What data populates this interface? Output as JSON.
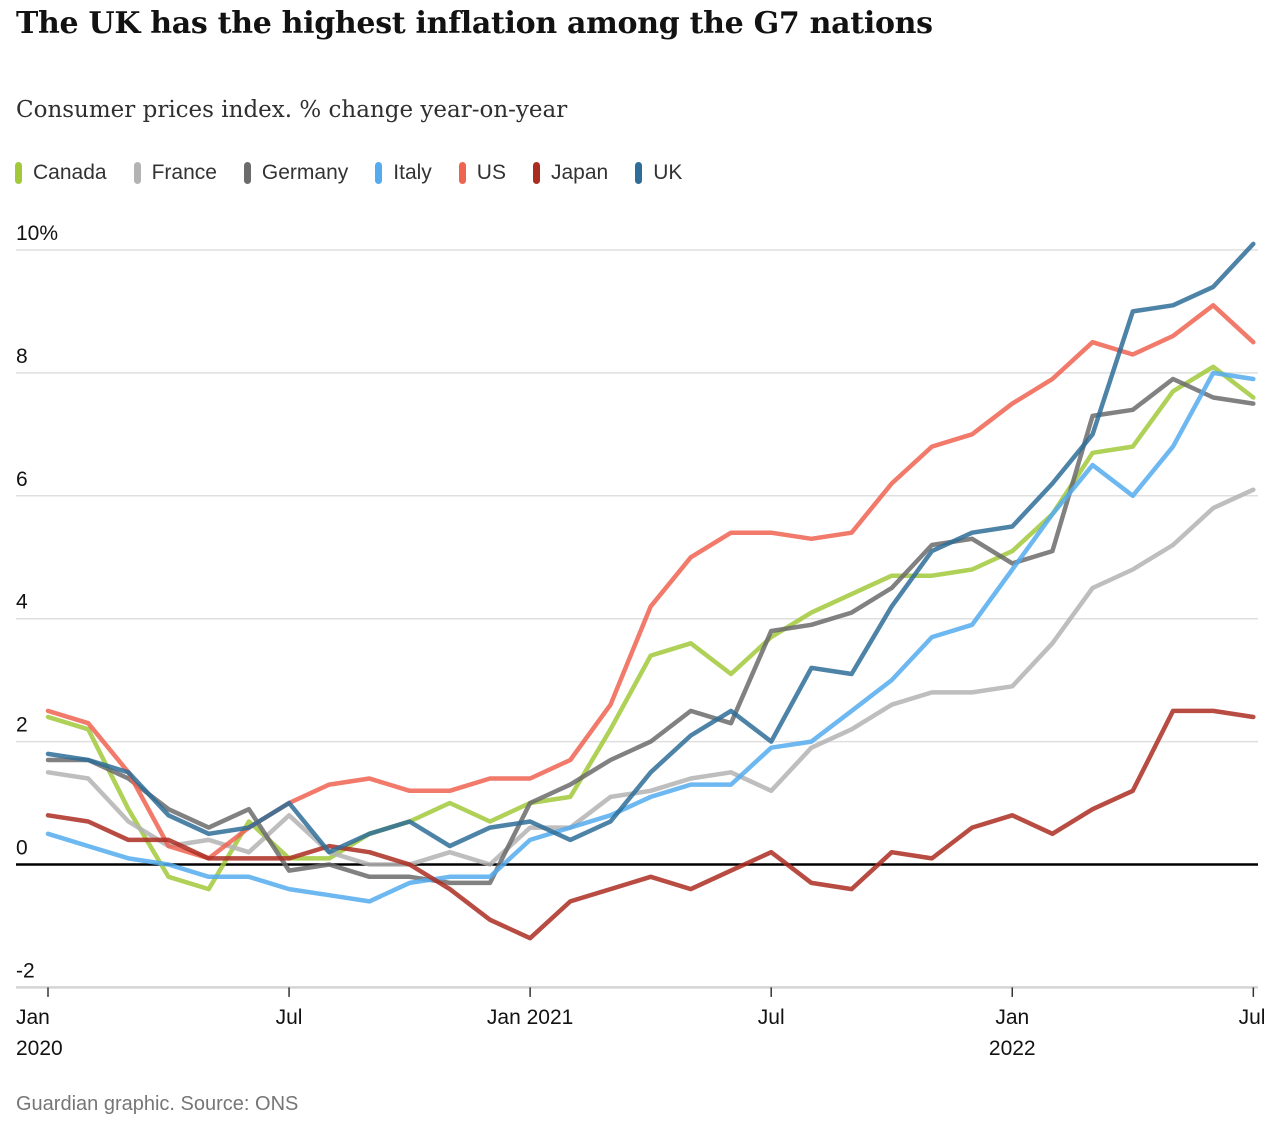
{
  "header": {
    "title": "The UK has the highest inflation among the G7 nations",
    "subtitle": "Consumer prices index. % change year-on-year"
  },
  "footer": {
    "credit": "Guardian graphic. Source: ONS"
  },
  "colors": {
    "text": "#121212",
    "muted_text": "#767676",
    "grid_line": "#dfdfdf",
    "axis_line": "#d4d4d4",
    "zero_line": "#000000",
    "background": "#ffffff"
  },
  "chart_data": {
    "type": "line",
    "title": "The UK has the highest inflation among the G7 nations",
    "subtitle": "Consumer prices index. % change year-on-year",
    "xlabel": "",
    "ylabel": "% change year-on-year",
    "ylim": [
      -2,
      10.5
    ],
    "grid": true,
    "zero_line": true,
    "legend_position": "top",
    "x": [
      "Jan 2020",
      "Feb 2020",
      "Mar 2020",
      "Apr 2020",
      "May 2020",
      "Jun 2020",
      "Jul 2020",
      "Aug 2020",
      "Sep 2020",
      "Oct 2020",
      "Nov 2020",
      "Dec 2020",
      "Jan 2021",
      "Feb 2021",
      "Mar 2021",
      "Apr 2021",
      "May 2021",
      "Jun 2021",
      "Jul 2021",
      "Aug 2021",
      "Sep 2021",
      "Oct 2021",
      "Nov 2021",
      "Dec 2021",
      "Jan 2022",
      "Feb 2022",
      "Mar 2022",
      "Apr 2022",
      "May 2022",
      "Jun 2022",
      "Jul 2022"
    ],
    "x_ticks": [
      {
        "month_index": 0,
        "line1": "Jan",
        "line2": "2020",
        "align": "left"
      },
      {
        "month_index": 6,
        "line1": "Jul",
        "line2": "",
        "align": "center"
      },
      {
        "month_index": 12,
        "line1": "Jan 2021",
        "line2": "",
        "align": "center"
      },
      {
        "month_index": 18,
        "line1": "Jul",
        "line2": "",
        "align": "center"
      },
      {
        "month_index": 24,
        "line1": "Jan",
        "line2": "2022",
        "align": "center"
      },
      {
        "month_index": 30,
        "line1": "Jul",
        "line2": "",
        "align": "center"
      }
    ],
    "y_ticks": [
      {
        "value": 10,
        "label": "10%"
      },
      {
        "value": 8,
        "label": "8"
      },
      {
        "value": 6,
        "label": "6"
      },
      {
        "value": 4,
        "label": "4"
      },
      {
        "value": 2,
        "label": "2"
      },
      {
        "value": 0,
        "label": "0"
      },
      {
        "value": -2,
        "label": "-2"
      }
    ],
    "series": [
      {
        "name": "Canada",
        "color": "#a1c93a",
        "values": [
          2.4,
          2.2,
          0.9,
          -0.2,
          -0.4,
          0.7,
          0.1,
          0.1,
          0.5,
          0.7,
          1.0,
          0.7,
          1.0,
          1.1,
          2.2,
          3.4,
          3.6,
          3.1,
          3.7,
          4.1,
          4.4,
          4.7,
          4.7,
          4.8,
          5.1,
          5.7,
          6.7,
          6.8,
          7.7,
          8.1,
          7.6
        ]
      },
      {
        "name": "France",
        "color": "#b3b3b4",
        "values": [
          1.5,
          1.4,
          0.7,
          0.3,
          0.4,
          0.2,
          0.8,
          0.2,
          0.0,
          0.0,
          0.2,
          0.0,
          0.6,
          0.6,
          1.1,
          1.2,
          1.4,
          1.5,
          1.2,
          1.9,
          2.2,
          2.6,
          2.8,
          2.8,
          2.9,
          3.6,
          4.5,
          4.8,
          5.2,
          5.8,
          6.1
        ]
      },
      {
        "name": "Germany",
        "color": "#6b6b6b",
        "values": [
          1.7,
          1.7,
          1.4,
          0.9,
          0.6,
          0.9,
          -0.1,
          0.0,
          -0.2,
          -0.2,
          -0.3,
          -0.3,
          1.0,
          1.3,
          1.7,
          2.0,
          2.5,
          2.3,
          3.8,
          3.9,
          4.1,
          4.5,
          5.2,
          5.3,
          4.9,
          5.1,
          7.3,
          7.4,
          7.9,
          7.6,
          7.5
        ]
      },
      {
        "name": "Italy",
        "color": "#55abee",
        "values": [
          0.5,
          0.3,
          0.1,
          0.0,
          -0.2,
          -0.2,
          -0.4,
          -0.5,
          -0.6,
          -0.3,
          -0.2,
          -0.2,
          0.4,
          0.6,
          0.8,
          1.1,
          1.3,
          1.3,
          1.9,
          2.0,
          2.5,
          3.0,
          3.7,
          3.9,
          4.8,
          5.7,
          6.5,
          6.0,
          6.8,
          8.0,
          7.9
        ]
      },
      {
        "name": "US",
        "color": "#ef6351",
        "values": [
          2.5,
          2.3,
          1.5,
          0.3,
          0.1,
          0.6,
          1.0,
          1.3,
          1.4,
          1.2,
          1.2,
          1.4,
          1.4,
          1.7,
          2.6,
          4.2,
          5.0,
          5.4,
          5.4,
          5.3,
          5.4,
          6.2,
          6.8,
          7.0,
          7.5,
          7.9,
          8.5,
          8.3,
          8.6,
          9.1,
          8.5
        ]
      },
      {
        "name": "Japan",
        "color": "#ab2d21",
        "values": [
          0.8,
          0.7,
          0.4,
          0.4,
          0.1,
          0.1,
          0.1,
          0.3,
          0.2,
          0.0,
          -0.4,
          -0.9,
          -1.2,
          -0.6,
          -0.4,
          -0.2,
          -0.4,
          -0.1,
          0.2,
          -0.3,
          -0.4,
          0.2,
          0.1,
          0.6,
          0.8,
          0.5,
          0.9,
          1.2,
          2.5,
          2.5,
          2.4
        ]
      },
      {
        "name": "UK",
        "color": "#2e6d98",
        "values": [
          1.8,
          1.7,
          1.5,
          0.8,
          0.5,
          0.6,
          1.0,
          0.2,
          0.5,
          0.7,
          0.3,
          0.6,
          0.7,
          0.4,
          0.7,
          1.5,
          2.1,
          2.5,
          2.0,
          3.2,
          3.1,
          4.2,
          5.1,
          5.4,
          5.5,
          6.2,
          7.0,
          9.0,
          9.1,
          9.4,
          10.1
        ]
      }
    ],
    "line_opacity": 0.85,
    "line_width": 4.5
  }
}
